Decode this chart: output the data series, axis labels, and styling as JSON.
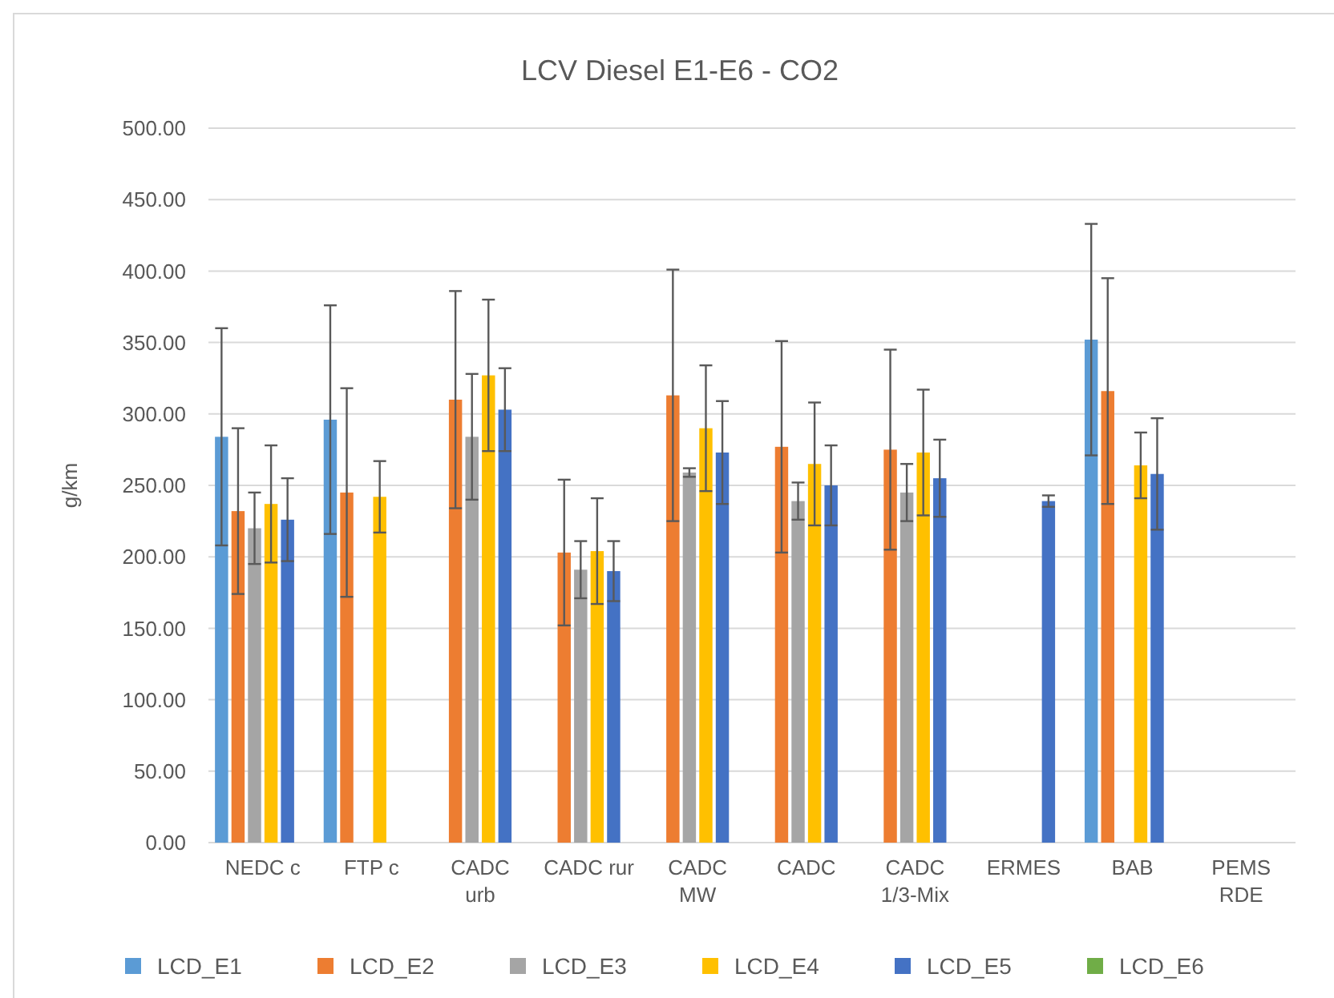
{
  "chart_data": {
    "type": "bar",
    "title": "LCV Diesel E1-E6 - CO2",
    "ylabel": "g/km",
    "categories": [
      "NEDC c",
      "FTP c",
      "CADC\nurb",
      "CADC rur",
      "CADC\nMW",
      "CADC",
      "CADC\n1/3-Mix",
      "ERMES",
      "BAB",
      "PEMS\nRDE"
    ],
    "series": [
      {
        "name": "LCD_E1",
        "color": "#5b9bd5",
        "values": [
          284,
          296,
          0,
          0,
          0,
          0,
          0,
          0,
          352,
          0
        ],
        "errors": [
          76,
          80,
          null,
          null,
          null,
          null,
          null,
          null,
          81,
          null
        ]
      },
      {
        "name": "LCD_E2",
        "color": "#ed7d31",
        "values": [
          232,
          245,
          310,
          203,
          313,
          277,
          275,
          0,
          316,
          0
        ],
        "errors": [
          58,
          73,
          76,
          51,
          88,
          74,
          70,
          null,
          79,
          null
        ]
      },
      {
        "name": "LCD_E3",
        "color": "#a5a5a5",
        "values": [
          220,
          0,
          284,
          191,
          259,
          239,
          245,
          0,
          0,
          0
        ],
        "errors": [
          25,
          null,
          44,
          20,
          3,
          13,
          20,
          null,
          null,
          null
        ]
      },
      {
        "name": "LCD_E4",
        "color": "#ffc000",
        "values": [
          237,
          242,
          327,
          204,
          290,
          265,
          273,
          0,
          264,
          0
        ],
        "errors": [
          41,
          25,
          53,
          37,
          44,
          43,
          44,
          null,
          23,
          null
        ]
      },
      {
        "name": "LCD_E5",
        "color": "#4472c4",
        "values": [
          226,
          0,
          303,
          190,
          273,
          250,
          255,
          239,
          258,
          0
        ],
        "errors": [
          29,
          null,
          29,
          21,
          36,
          28,
          27,
          4,
          39,
          null
        ]
      },
      {
        "name": "LCD_E6",
        "color": "#70ad47",
        "values": [
          0,
          0,
          0,
          0,
          0,
          0,
          0,
          0,
          0,
          0
        ]
      }
    ],
    "ylim": [
      0,
      500
    ],
    "yticks": [
      {
        "value": 0,
        "label": "0.00"
      },
      {
        "value": 50,
        "label": "50.00"
      },
      {
        "value": 100,
        "label": "100.00"
      },
      {
        "value": 150,
        "label": "150.00"
      },
      {
        "value": 200,
        "label": "200.00"
      },
      {
        "value": 250,
        "label": "250.00"
      },
      {
        "value": 300,
        "label": "300.00"
      },
      {
        "value": 350,
        "label": "350.00"
      },
      {
        "value": 400,
        "label": "400.00"
      },
      {
        "value": 450,
        "label": "450.00"
      },
      {
        "value": 500,
        "label": "500.00"
      }
    ],
    "grid": "y",
    "legend": "bottom"
  }
}
